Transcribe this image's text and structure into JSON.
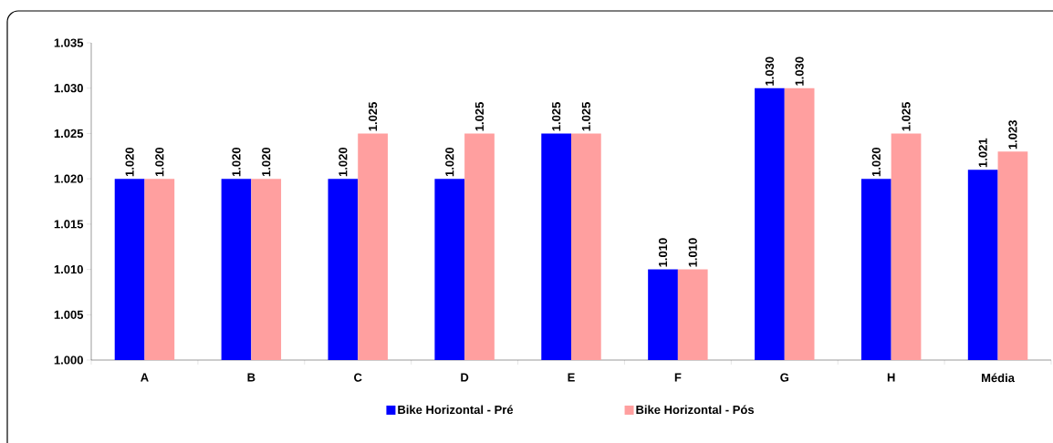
{
  "chart_data": {
    "type": "bar",
    "categories": [
      "A",
      "B",
      "C",
      "D",
      "E",
      "F",
      "G",
      "H",
      "Média"
    ],
    "series": [
      {
        "name": "Bike Horizontal - Pré",
        "color": "#0000ff",
        "values": [
          1.02,
          1.02,
          1.02,
          1.02,
          1.025,
          1.01,
          1.03,
          1.02,
          1.021
        ],
        "value_labels": [
          "1.020",
          "1.020",
          "1.020",
          "1.020",
          "1.025",
          "1.010",
          "1.030",
          "1.020",
          "1.021"
        ]
      },
      {
        "name": "Bike Horizontal - Pós",
        "color": "#ff9f9f",
        "values": [
          1.02,
          1.02,
          1.025,
          1.025,
          1.025,
          1.01,
          1.03,
          1.025,
          1.023
        ],
        "value_labels": [
          "1.020",
          "1.020",
          "1.025",
          "1.025",
          "1.025",
          "1.010",
          "1.030",
          "1.025",
          "1.023"
        ]
      }
    ],
    "ylim": [
      1.0,
      1.035
    ],
    "yticks": [
      {
        "value": 1.0,
        "label": "1.000"
      },
      1.005,
      {
        "value": 1.01,
        "label": "1.010"
      },
      1.015,
      {
        "value": 1.02,
        "label": "1.020"
      },
      1.025,
      {
        "value": 1.03,
        "label": "1.030"
      },
      1.035
    ],
    "grid": false,
    "legend": "bottom"
  }
}
